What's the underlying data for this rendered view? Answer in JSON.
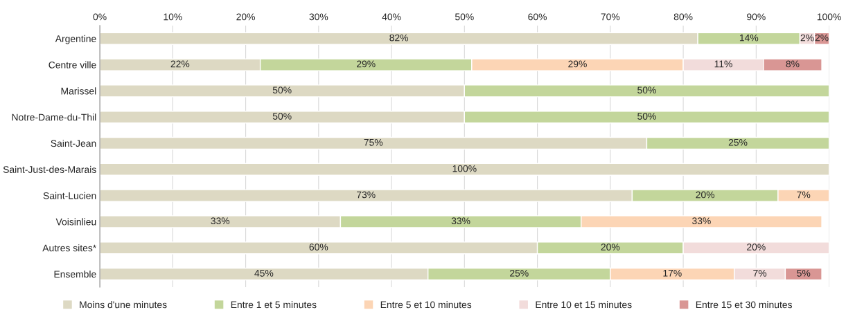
{
  "chart_data": {
    "type": "bar",
    "orientation": "horizontal",
    "stacked": true,
    "grid": "x",
    "legend": "bottom",
    "categories": [
      "Argentine",
      "Centre ville",
      "Marissel",
      "Notre-Dame-du-Thil",
      "Saint-Jean",
      "Saint-Just-des-Marais",
      "Saint-Lucien",
      "Voisinlieu",
      "Autres sites*",
      "Ensemble"
    ],
    "xlim": [
      0,
      100
    ],
    "xticks": [
      {
        "value": 0,
        "label": "0%"
      },
      {
        "value": 10,
        "label": "10%"
      },
      {
        "value": 20,
        "label": "20%"
      },
      {
        "value": 30,
        "label": "30%"
      },
      {
        "value": 40,
        "label": "40%"
      },
      {
        "value": 50,
        "label": "50%"
      },
      {
        "value": 60,
        "label": "60%"
      },
      {
        "value": 70,
        "label": "70%"
      },
      {
        "value": 80,
        "label": "80%"
      },
      {
        "value": 90,
        "label": "90%"
      },
      {
        "value": 100,
        "label": "100%"
      }
    ],
    "series": [
      {
        "name": "Moins d'une minutes",
        "color": "#ddd9c3",
        "values": [
          82,
          22,
          50,
          50,
          75,
          100,
          73,
          33,
          60,
          45
        ],
        "value_labels": [
          "82%",
          "22%",
          "50%",
          "50%",
          "75%",
          "100%",
          "73%",
          "33%",
          "60%",
          "45%"
        ]
      },
      {
        "name": "Entre 1 et 5 minutes",
        "color": "#c3d69b",
        "values": [
          14,
          29,
          50,
          50,
          25,
          null,
          20,
          33,
          20,
          25
        ],
        "value_labels": [
          "14%",
          "29%",
          "50%",
          "50%",
          "25%",
          null,
          "20%",
          "33%",
          "20%",
          "25%"
        ]
      },
      {
        "name": "Entre 5 et 10 minutes",
        "color": "#fcd5b5",
        "values": [
          null,
          29,
          null,
          null,
          null,
          null,
          7,
          33,
          null,
          17
        ],
        "value_labels": [
          null,
          "29%",
          null,
          null,
          null,
          null,
          "7%",
          "33%",
          null,
          "17%"
        ]
      },
      {
        "name": "Entre 10 et 15 minutes",
        "color": "#f2dcdb",
        "values": [
          2,
          11,
          null,
          null,
          null,
          null,
          null,
          null,
          20,
          7
        ],
        "value_labels": [
          "2%",
          "11%",
          null,
          null,
          null,
          null,
          null,
          null,
          "20%",
          "7%"
        ]
      },
      {
        "name": "Entre 15 et 30 minutes",
        "color": "#d99694",
        "values": [
          2,
          8,
          null,
          null,
          null,
          null,
          null,
          null,
          null,
          5
        ],
        "value_labels": [
          "2%",
          "8%",
          null,
          null,
          null,
          null,
          null,
          null,
          null,
          "5%"
        ]
      }
    ]
  }
}
